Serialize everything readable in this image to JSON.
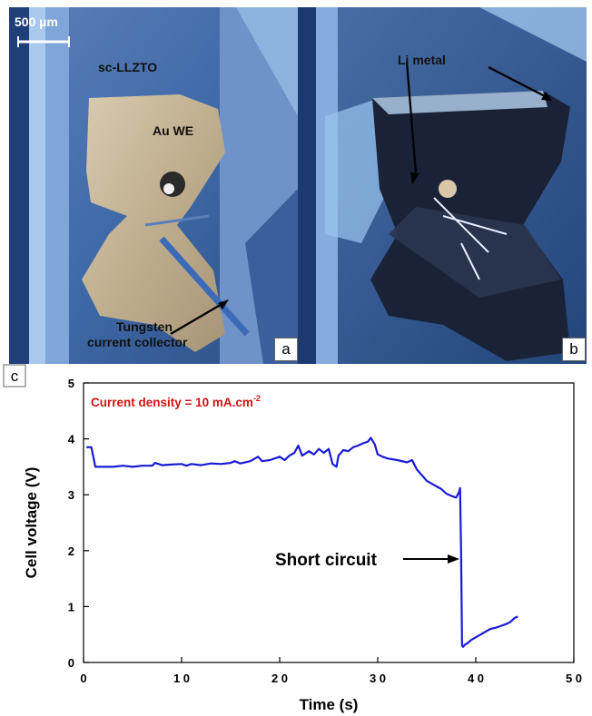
{
  "panels": {
    "a": {
      "letter": "a",
      "scale_bar": "500 µm",
      "label_electrolyte": "sc-LLZTO",
      "label_electrode": "Au WE",
      "label_collector_1": "Tungsten",
      "label_collector_2": "current collector"
    },
    "b": {
      "letter": "b",
      "label_li": "Li metal"
    }
  },
  "chart_data": {
    "type": "line",
    "panel_letter": "c",
    "annotation_current": "Current density = 10 mA.cm",
    "annotation_current_sup": "-2",
    "annotation_short": "Short circuit",
    "xlabel": "Time (s)",
    "ylabel": "Cell voltage (V)",
    "xlim": [
      0,
      50
    ],
    "ylim": [
      0,
      5
    ],
    "xticks": [
      0,
      10,
      20,
      30,
      40,
      50
    ],
    "yticks": [
      0,
      1,
      2,
      3,
      4,
      5
    ],
    "xtick_labels": [
      "0",
      "1 0",
      "2 0",
      "3 0",
      "4 0",
      "5 0"
    ],
    "ytick_labels": [
      "0",
      "1",
      "2",
      "3",
      "4",
      "5"
    ],
    "line_color": "#1a1ad6",
    "annotation_color": "#d21414",
    "series": [
      {
        "x": [
          0.3,
          0.8,
          1.2,
          2,
          3,
          4,
          5,
          6,
          7,
          7.3,
          8,
          9,
          10,
          10.5,
          11,
          12,
          13,
          14,
          15,
          15.4,
          16,
          17,
          17.8,
          18.2,
          19,
          20,
          20.5,
          21,
          21.5,
          21.9,
          22.3,
          23,
          23.5,
          24,
          24.5,
          25,
          25.4,
          25.8,
          26,
          26.5,
          27,
          27.5,
          28,
          28.5,
          29,
          29.3,
          29.7,
          30,
          30.5,
          31,
          32,
          33,
          33.5,
          34,
          34.5,
          35,
          35.5,
          36,
          36.5,
          37,
          37.5,
          38,
          38.3,
          38.4,
          38.5,
          38.6,
          38.7,
          38.9,
          39.2,
          39.5,
          40,
          40.5,
          41,
          41.5,
          42,
          42.5,
          43,
          43.5,
          44,
          44.3
        ],
        "y": [
          3.85,
          3.85,
          3.5,
          3.5,
          3.5,
          3.52,
          3.5,
          3.52,
          3.52,
          3.57,
          3.53,
          3.54,
          3.55,
          3.52,
          3.55,
          3.53,
          3.56,
          3.55,
          3.57,
          3.6,
          3.56,
          3.6,
          3.68,
          3.6,
          3.62,
          3.68,
          3.62,
          3.7,
          3.75,
          3.88,
          3.7,
          3.78,
          3.72,
          3.82,
          3.75,
          3.82,
          3.55,
          3.5,
          3.7,
          3.8,
          3.78,
          3.85,
          3.88,
          3.92,
          3.95,
          4.02,
          3.9,
          3.72,
          3.68,
          3.65,
          3.62,
          3.58,
          3.62,
          3.45,
          3.35,
          3.25,
          3.2,
          3.15,
          3.1,
          3.02,
          2.98,
          2.95,
          3.05,
          3.12,
          2.0,
          0.3,
          0.28,
          0.32,
          0.35,
          0.4,
          0.45,
          0.5,
          0.55,
          0.6,
          0.62,
          0.65,
          0.68,
          0.72,
          0.8,
          0.82
        ]
      }
    ]
  }
}
